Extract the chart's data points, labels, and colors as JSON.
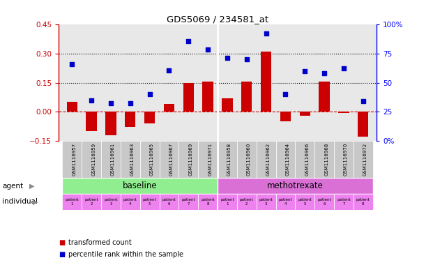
{
  "title": "GDS5069 / 234581_at",
  "x_labels": [
    "GSM1116957",
    "GSM1116959",
    "GSM1116961",
    "GSM1116963",
    "GSM1116965",
    "GSM1116967",
    "GSM1116969",
    "GSM1116971",
    "GSM1116958",
    "GSM1116960",
    "GSM1116962",
    "GSM1116964",
    "GSM1116966",
    "GSM1116968",
    "GSM1116970",
    "GSM1116972"
  ],
  "bar_values": [
    0.05,
    -0.1,
    -0.12,
    -0.08,
    -0.06,
    0.04,
    0.15,
    0.155,
    0.07,
    0.155,
    0.31,
    -0.05,
    -0.02,
    0.155,
    -0.005,
    -0.13
  ],
  "dot_values": [
    0.245,
    0.06,
    0.045,
    0.045,
    0.09,
    0.215,
    0.365,
    0.32,
    0.28,
    0.27,
    0.405,
    0.09,
    0.21,
    0.2,
    0.225,
    0.055
  ],
  "bar_color": "#cc0000",
  "dot_color": "#0000cc",
  "ylim_left": [
    -0.15,
    0.45
  ],
  "ylim_right": [
    0,
    100
  ],
  "yticks_left": [
    -0.15,
    0.0,
    0.15,
    0.3,
    0.45
  ],
  "yticks_right": [
    0,
    25,
    50,
    75,
    100
  ],
  "ytick_labels_right": [
    "0%",
    "25",
    "50",
    "75",
    "100%"
  ],
  "hlines": [
    0.15,
    0.3
  ],
  "baseline_label": "baseline",
  "methotrexate_label": "methotrexate",
  "baseline_color": "#90ee90",
  "methotrexate_color": "#da70d6",
  "patient_color": "#ee82ee",
  "agent_label": "agent",
  "individual_label": "individual",
  "patient_labels": [
    "patient\n1",
    "patient\n2",
    "patient\n3",
    "patient\n4",
    "patient\n5",
    "patient\n6",
    "patient\n7",
    "patient\n8"
  ],
  "legend_bar_label": "transformed count",
  "legend_dot_label": "percentile rank within the sample",
  "background_color": "#ffffff",
  "zero_line_color": "#cc0000",
  "chart_bg_color": "#e8e8e8",
  "n_baseline": 8,
  "n_methotrexate": 8
}
